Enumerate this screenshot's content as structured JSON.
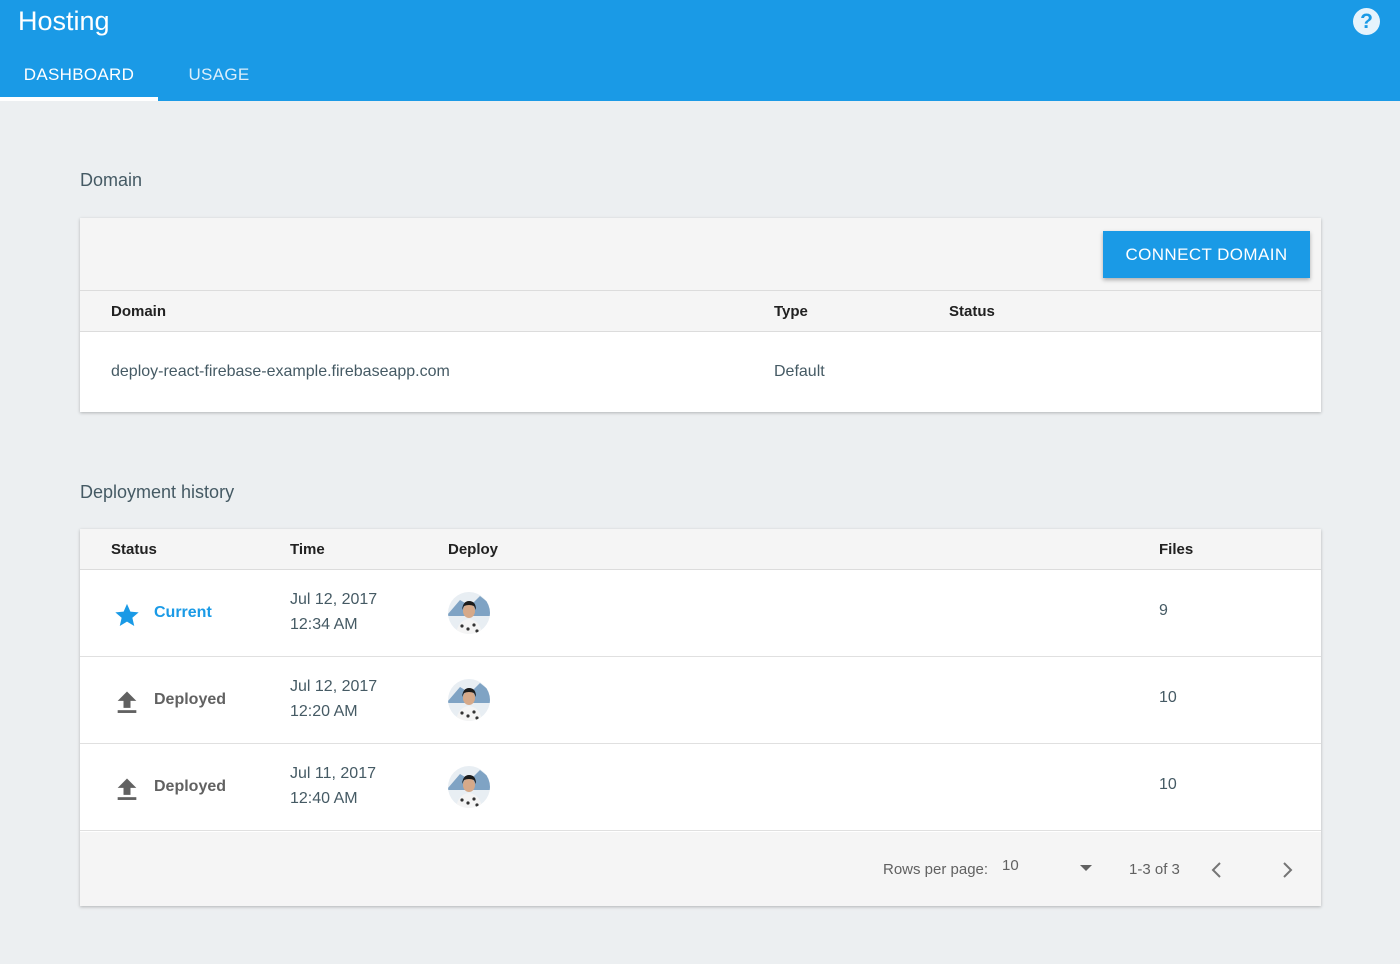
{
  "header": {
    "title": "Hosting",
    "help_glyph": "?",
    "tabs": [
      {
        "label": "DASHBOARD",
        "active": true
      },
      {
        "label": "USAGE",
        "active": false
      }
    ]
  },
  "domain_section": {
    "title": "Domain",
    "connect_button": "CONNECT DOMAIN",
    "columns": [
      "Domain",
      "Type",
      "Status"
    ],
    "rows": [
      {
        "domain": "deploy-react-firebase-example.firebaseapp.com",
        "type": "Default",
        "status": ""
      }
    ]
  },
  "deploy_section": {
    "title": "Deployment history",
    "columns": [
      "Status",
      "Time",
      "Deploy",
      "Files"
    ],
    "rows": [
      {
        "status": "Current",
        "icon": "star-icon",
        "date": "Jul 12, 2017",
        "time": "12:34 AM",
        "files": "9"
      },
      {
        "status": "Deployed",
        "icon": "upload-icon",
        "date": "Jul 12, 2017",
        "time": "12:20 AM",
        "files": "10"
      },
      {
        "status": "Deployed",
        "icon": "upload-icon",
        "date": "Jul 11, 2017",
        "time": "12:40 AM",
        "files": "10"
      }
    ],
    "footer": {
      "rows_per_page_label": "Rows per page:",
      "rows_per_page_value": "10",
      "range": "1-3 of 3"
    }
  },
  "colors": {
    "accent": "#1a9ae6",
    "background": "#eceff1"
  }
}
